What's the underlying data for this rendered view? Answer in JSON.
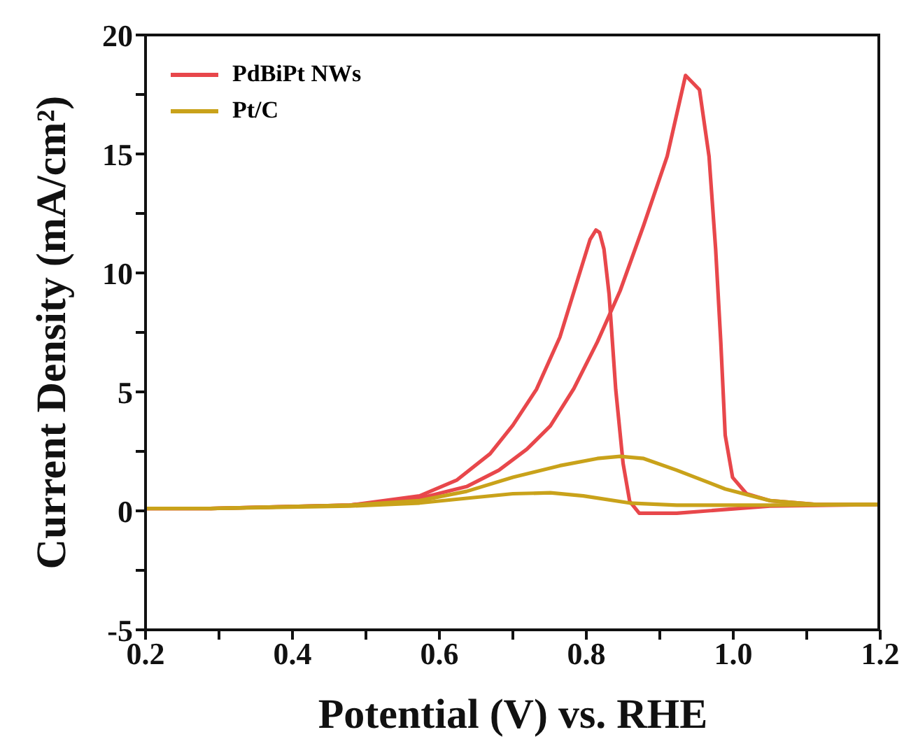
{
  "chart_data": {
    "type": "line",
    "xlabel": "Potential (V) vs. RHE",
    "ylabel": "Current Density (mA/cm²)",
    "xlim": [
      0.2,
      1.2
    ],
    "ylim": [
      -5,
      20
    ],
    "xticks": [
      0.2,
      {
        "value": 0.3,
        "label": null
      },
      0.4,
      {
        "value": 0.5,
        "label": null
      },
      0.6,
      {
        "value": 0.7,
        "label": null
      },
      0.8,
      {
        "value": 0.9,
        "label": null
      },
      {
        "value": 1,
        "label": "1.0"
      },
      {
        "value": 1.1,
        "label": null
      },
      1.2
    ],
    "yticks": [
      -5,
      {
        "value": -2.5,
        "label": null
      },
      0,
      {
        "value": 2.5,
        "label": null
      },
      5,
      {
        "value": 7.5,
        "label": null
      },
      10,
      {
        "value": 12.5,
        "label": null
      },
      15,
      {
        "value": 17.5,
        "label": null
      },
      20
    ],
    "grid": false,
    "legend": "top left",
    "marker": "none",
    "line_style": "solid",
    "series": [
      {
        "name": "PdBiPt NWs",
        "color": "#e8474b",
        "x": [
          0.2,
          0.288,
          0.478,
          0.573,
          0.637,
          0.681,
          0.719,
          0.751,
          0.783,
          0.815,
          0.846,
          0.878,
          0.91,
          0.935,
          0.954,
          0.967,
          0.976,
          0.983,
          0.989,
          0.999,
          1.018,
          1.05,
          1.113,
          1.2
        ],
        "values": [
          0.1,
          0.1,
          0.24,
          0.53,
          1.02,
          1.71,
          2.59,
          3.57,
          5.14,
          7.1,
          9.25,
          12,
          14.9,
          18.3,
          17.7,
          14.9,
          11,
          7.1,
          3.18,
          1.41,
          0.72,
          0.43,
          0.27,
          0.27
        ]
      },
      {
        "color": "#e8474b",
        "x": [
          1.2,
          1.05,
          0.923,
          0.872,
          0.859,
          0.85,
          0.84,
          0.831,
          0.824,
          0.818,
          0.813,
          0.805,
          0.789,
          0.764,
          0.732,
          0.7,
          0.669,
          0.624,
          0.573,
          0.478,
          0.288,
          0.2
        ],
        "values": [
          0.27,
          0.2,
          -0.1,
          -0.1,
          0.4,
          2,
          5.1,
          9.1,
          11,
          11.7,
          11.8,
          11.4,
          9.8,
          7.3,
          5.1,
          3.6,
          2.4,
          1.3,
          0.63,
          0.24,
          0.1,
          0.1
        ]
      },
      {
        "name": "Pt/C",
        "color": "#c9a21a",
        "x": [
          0.2,
          0.288,
          0.478,
          0.573,
          0.637,
          0.7,
          0.764,
          0.815,
          0.846,
          0.878,
          0.923,
          0.989,
          1.05,
          1.113,
          1.2
        ],
        "values": [
          0.1,
          0.1,
          0.24,
          0.43,
          0.82,
          1.41,
          1.9,
          2.2,
          2.29,
          2.2,
          1.71,
          0.92,
          0.43,
          0.27,
          0.27
        ]
      },
      {
        "color": "#c9a21a",
        "x": [
          1.2,
          1.05,
          0.923,
          0.859,
          0.796,
          0.751,
          0.7,
          0.637,
          0.573,
          0.478,
          0.288
        ],
        "values": [
          0.27,
          0.24,
          0.24,
          0.33,
          0.63,
          0.76,
          0.72,
          0.53,
          0.33,
          0.2,
          0.1
        ]
      }
    ]
  }
}
